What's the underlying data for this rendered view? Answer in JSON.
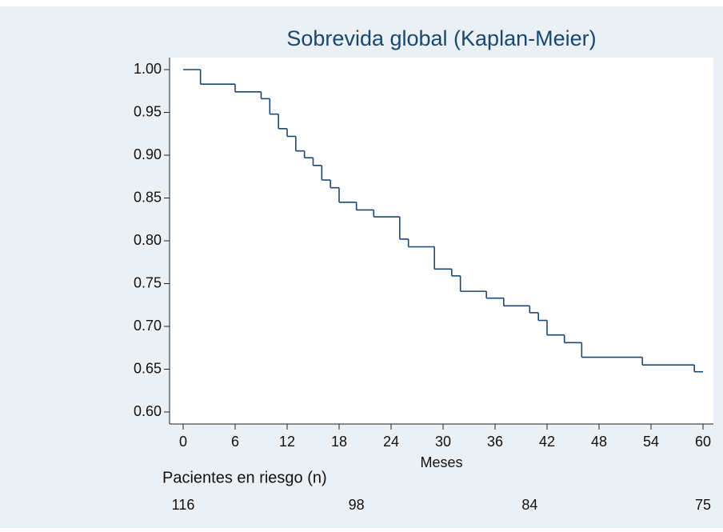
{
  "chart_data": {
    "type": "step",
    "title": "Sobrevida global (Kaplan-Meier)",
    "x_label": "Meses",
    "x": [
      0,
      2,
      6,
      9,
      10,
      11,
      12,
      13,
      14,
      15,
      16,
      17,
      18,
      20,
      22,
      25,
      26,
      29,
      31,
      32,
      35,
      37,
      40,
      41,
      42,
      44,
      46,
      53,
      59,
      60
    ],
    "values": [
      1.0,
      0.983,
      0.974,
      0.966,
      0.948,
      0.931,
      0.922,
      0.905,
      0.897,
      0.888,
      0.871,
      0.862,
      0.845,
      0.836,
      0.828,
      0.802,
      0.793,
      0.767,
      0.759,
      0.741,
      0.733,
      0.724,
      0.716,
      0.707,
      0.69,
      0.681,
      0.664,
      0.655,
      0.647,
      0.647
    ],
    "color": "#1a476f",
    "xlim": [
      0,
      60
    ],
    "xticks": [
      0,
      6,
      12,
      18,
      24,
      30,
      36,
      42,
      48,
      54,
      60
    ],
    "ylim": [
      0.6,
      1.0
    ],
    "yticks": [
      {
        "value": 0.6,
        "label": "0.60"
      },
      {
        "value": 0.65,
        "label": "0.65"
      },
      {
        "value": 0.7,
        "label": "0.70"
      },
      {
        "value": 0.75,
        "label": "0.75"
      },
      {
        "value": 0.8,
        "label": "0.80"
      },
      {
        "value": 0.85,
        "label": "0.85"
      },
      {
        "value": 0.9,
        "label": "0.90"
      },
      {
        "value": 0.95,
        "label": "0.95"
      },
      {
        "value": 1.0,
        "label": "1.00"
      }
    ],
    "risk_table": {
      "title": "Pacientes en riesgo (n)",
      "x": [
        0,
        20,
        40,
        60
      ],
      "values": [
        116,
        98,
        84,
        75
      ]
    }
  }
}
